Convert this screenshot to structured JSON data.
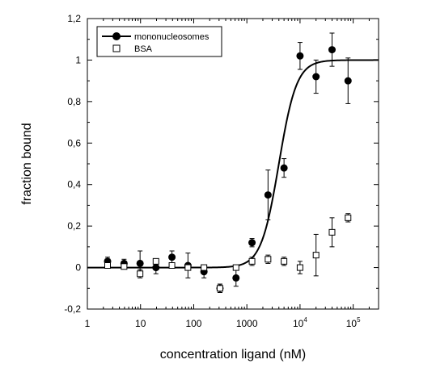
{
  "chart_data": {
    "type": "scatter",
    "title": "",
    "xlabel": "concentration ligand (nM)",
    "ylabel": "fraction bound",
    "xscale": "log",
    "xlim": [
      1,
      300000
    ],
    "ylim": [
      -0.2,
      1.2
    ],
    "x_ticks": [
      {
        "value": 1,
        "base": "1",
        "exp": ""
      },
      {
        "value": 10,
        "base": "10",
        "exp": ""
      },
      {
        "value": 100,
        "base": "100",
        "exp": ""
      },
      {
        "value": 1000,
        "base": "1000",
        "exp": ""
      },
      {
        "value": 10000,
        "base": "10",
        "exp": "4"
      },
      {
        "value": 100000,
        "base": "10",
        "exp": "5"
      }
    ],
    "y_ticks": [
      {
        "value": -0.2,
        "label": "-0,2"
      },
      {
        "value": 0,
        "label": "0"
      },
      {
        "value": 0.2,
        "label": "0,2"
      },
      {
        "value": 0.4,
        "label": "0,4"
      },
      {
        "value": 0.6,
        "label": "0,6"
      },
      {
        "value": 0.8,
        "label": "0,8"
      },
      {
        "value": 1,
        "label": "1"
      },
      {
        "value": 1.2,
        "label": "1,2"
      }
    ],
    "legend_position": "top-left",
    "series": [
      {
        "name": "mononucleosomes",
        "marker": "filled-circle",
        "color": "#000000",
        "points": [
          {
            "x": 2.4,
            "y": 0.03,
            "err": 0.02
          },
          {
            "x": 4.9,
            "y": 0.02,
            "err": 0.02
          },
          {
            "x": 9.8,
            "y": 0.02,
            "err": 0.06
          },
          {
            "x": 19.5,
            "y": 0.0,
            "err": 0.03
          },
          {
            "x": 39,
            "y": 0.05,
            "err": 0.03
          },
          {
            "x": 78,
            "y": 0.01,
            "err": 0.06
          },
          {
            "x": 156,
            "y": -0.02,
            "err": 0.03
          },
          {
            "x": 312,
            "y": -0.1,
            "err": 0.02
          },
          {
            "x": 625,
            "y": -0.05,
            "err": 0.04
          },
          {
            "x": 1250,
            "y": 0.12,
            "err": 0.02
          },
          {
            "x": 2500,
            "y": 0.35,
            "err": 0.12
          },
          {
            "x": 5000,
            "y": 0.48,
            "err": 0.045
          },
          {
            "x": 10000,
            "y": 1.02,
            "err": 0.065
          },
          {
            "x": 20000,
            "y": 0.92,
            "err": 0.08
          },
          {
            "x": 40000,
            "y": 1.05,
            "err": 0.08
          },
          {
            "x": 80000,
            "y": 0.9,
            "err": 0.11
          }
        ]
      },
      {
        "name": "BSA",
        "marker": "open-square",
        "color": "#000000",
        "points": [
          {
            "x": 2.4,
            "y": 0.01,
            "err": 0.01
          },
          {
            "x": 4.9,
            "y": 0.005,
            "err": 0.01
          },
          {
            "x": 9.8,
            "y": -0.03,
            "err": 0.02
          },
          {
            "x": 19.5,
            "y": 0.03,
            "err": 0.01
          },
          {
            "x": 39,
            "y": 0.01,
            "err": 0.01
          },
          {
            "x": 78,
            "y": 0.0,
            "err": 0.01
          },
          {
            "x": 156,
            "y": 0.0,
            "err": 0.01
          },
          {
            "x": 312,
            "y": -0.1,
            "err": 0.02
          },
          {
            "x": 625,
            "y": 0.0,
            "err": 0.01
          },
          {
            "x": 1250,
            "y": 0.03,
            "err": 0.02
          },
          {
            "x": 2500,
            "y": 0.04,
            "err": 0.02
          },
          {
            "x": 5000,
            "y": 0.03,
            "err": 0.02
          },
          {
            "x": 10000,
            "y": 0.0,
            "err": 0.03
          },
          {
            "x": 20000,
            "y": 0.06,
            "err": 0.1
          },
          {
            "x": 40000,
            "y": 0.17,
            "err": 0.07
          },
          {
            "x": 80000,
            "y": 0.24,
            "err": 0.02
          }
        ]
      }
    ],
    "fit_curve": {
      "series": "mononucleosomes",
      "model": "sigmoid",
      "midpoint_x": 4000,
      "hill": 2.6,
      "bottom": 0,
      "top": 1
    }
  }
}
